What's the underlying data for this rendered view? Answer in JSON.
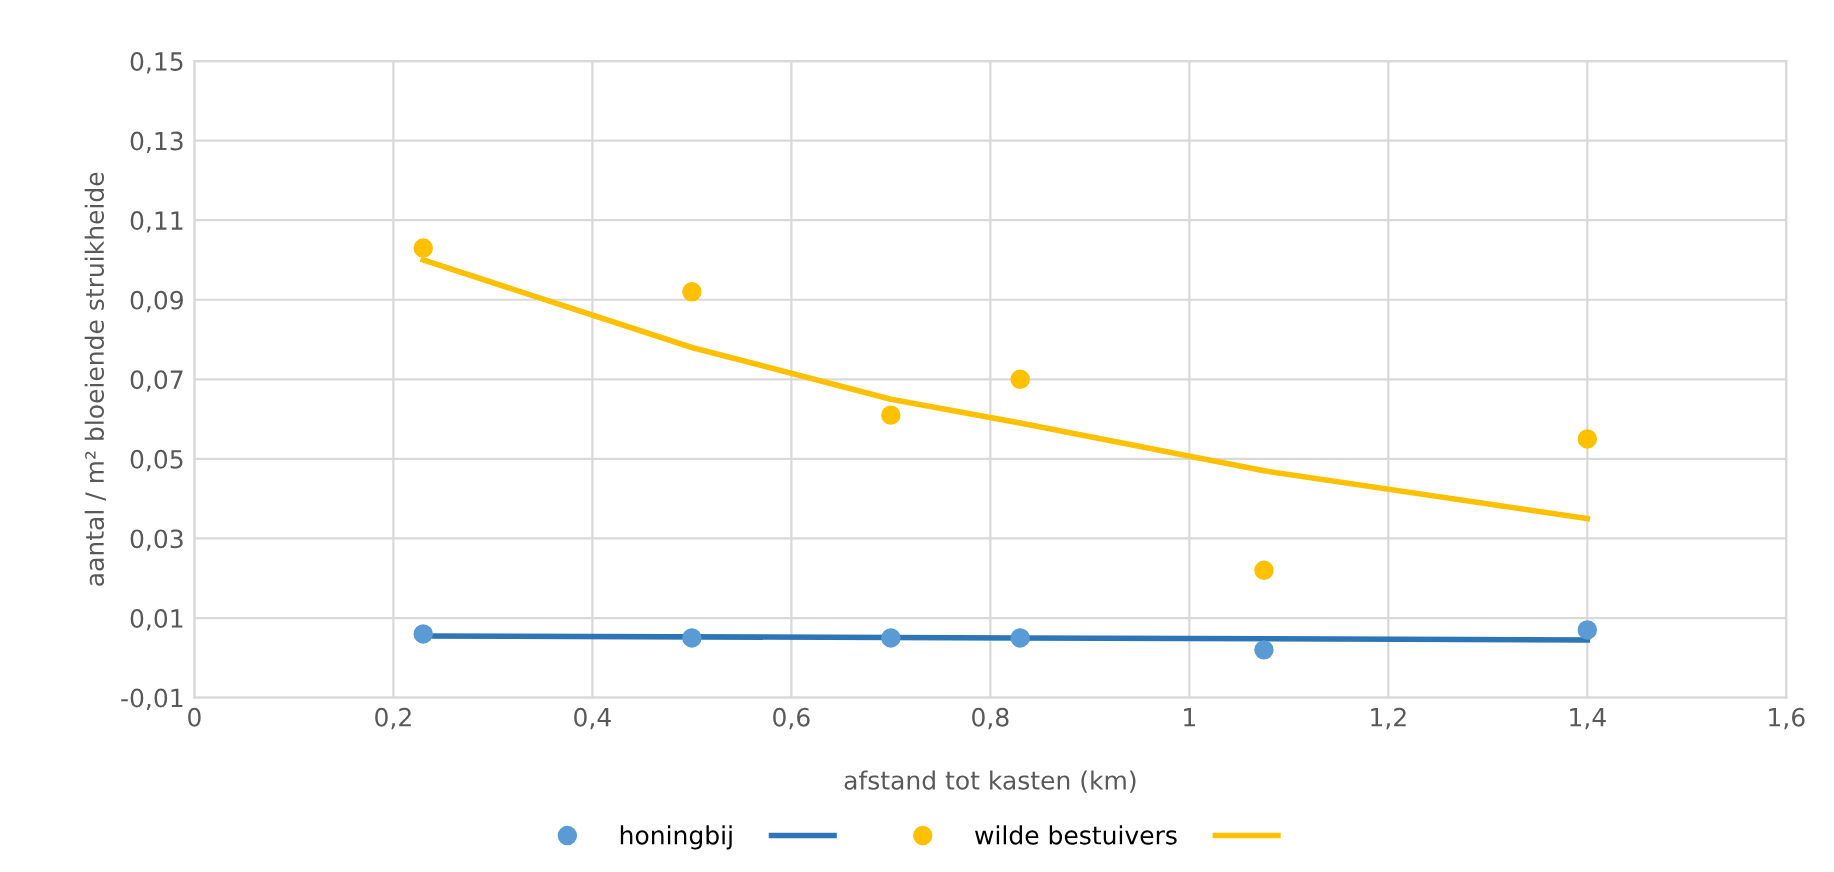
{
  "chart_data": {
    "type": "scatter",
    "xlabel": "afstand tot kasten (km)",
    "ylabel": "aantal / m² bloeiende struikheide",
    "xlim": [
      0,
      1.6
    ],
    "xticks": [
      0,
      {
        "value": 0.2,
        "label": "0,2"
      },
      {
        "value": 0.4,
        "label": "0,4"
      },
      {
        "value": 0.6,
        "label": "0,6"
      },
      {
        "value": 0.8,
        "label": "0,8"
      },
      1,
      {
        "value": 1.2,
        "label": "1,2"
      },
      {
        "value": 1.4,
        "label": "1,4"
      },
      {
        "value": 1.6,
        "label": "1,6"
      }
    ],
    "ylim": [
      -0.01,
      0.15
    ],
    "yticks": [
      {
        "value": -0.01,
        "label": "-0,01"
      },
      {
        "value": 0.01,
        "label": "0,01"
      },
      {
        "value": 0.03,
        "label": "0,03"
      },
      {
        "value": 0.05,
        "label": "0,05"
      },
      {
        "value": 0.07,
        "label": "0,07"
      },
      {
        "value": 0.09,
        "label": "0,09"
      },
      {
        "value": 0.11,
        "label": "0,11"
      },
      {
        "value": 0.13,
        "label": "0,13"
      },
      {
        "value": 0.15,
        "label": "0,15"
      }
    ],
    "grid": true,
    "legend": "bottom",
    "series": [
      {
        "name": "honingbij",
        "marker": "circle",
        "color": "#5b9bd5",
        "x": [
          0.23,
          0.5,
          0.7,
          0.83,
          1.075,
          1.4
        ],
        "values": [
          0.006,
          0.005,
          0.005,
          0.005,
          0.002,
          0.007
        ]
      },
      {
        "type": "line",
        "color": "#2e75b6",
        "x": [
          0.23,
          1.4
        ],
        "values": [
          0.0055,
          0.0045
        ]
      },
      {
        "name": "wilde bestuivers",
        "marker": "circle",
        "color": "#ffc000",
        "x": [
          0.23,
          0.5,
          0.7,
          0.83,
          1.075,
          1.4
        ],
        "values": [
          0.103,
          0.092,
          0.061,
          0.07,
          0.022,
          0.055
        ]
      },
      {
        "type": "line",
        "color": "#ffc000",
        "x": [
          0.23,
          0.5,
          0.7,
          0.83,
          1.075,
          1.4
        ],
        "values": [
          0.1,
          0.078,
          0.065,
          0.059,
          0.047,
          0.035
        ]
      }
    ]
  }
}
